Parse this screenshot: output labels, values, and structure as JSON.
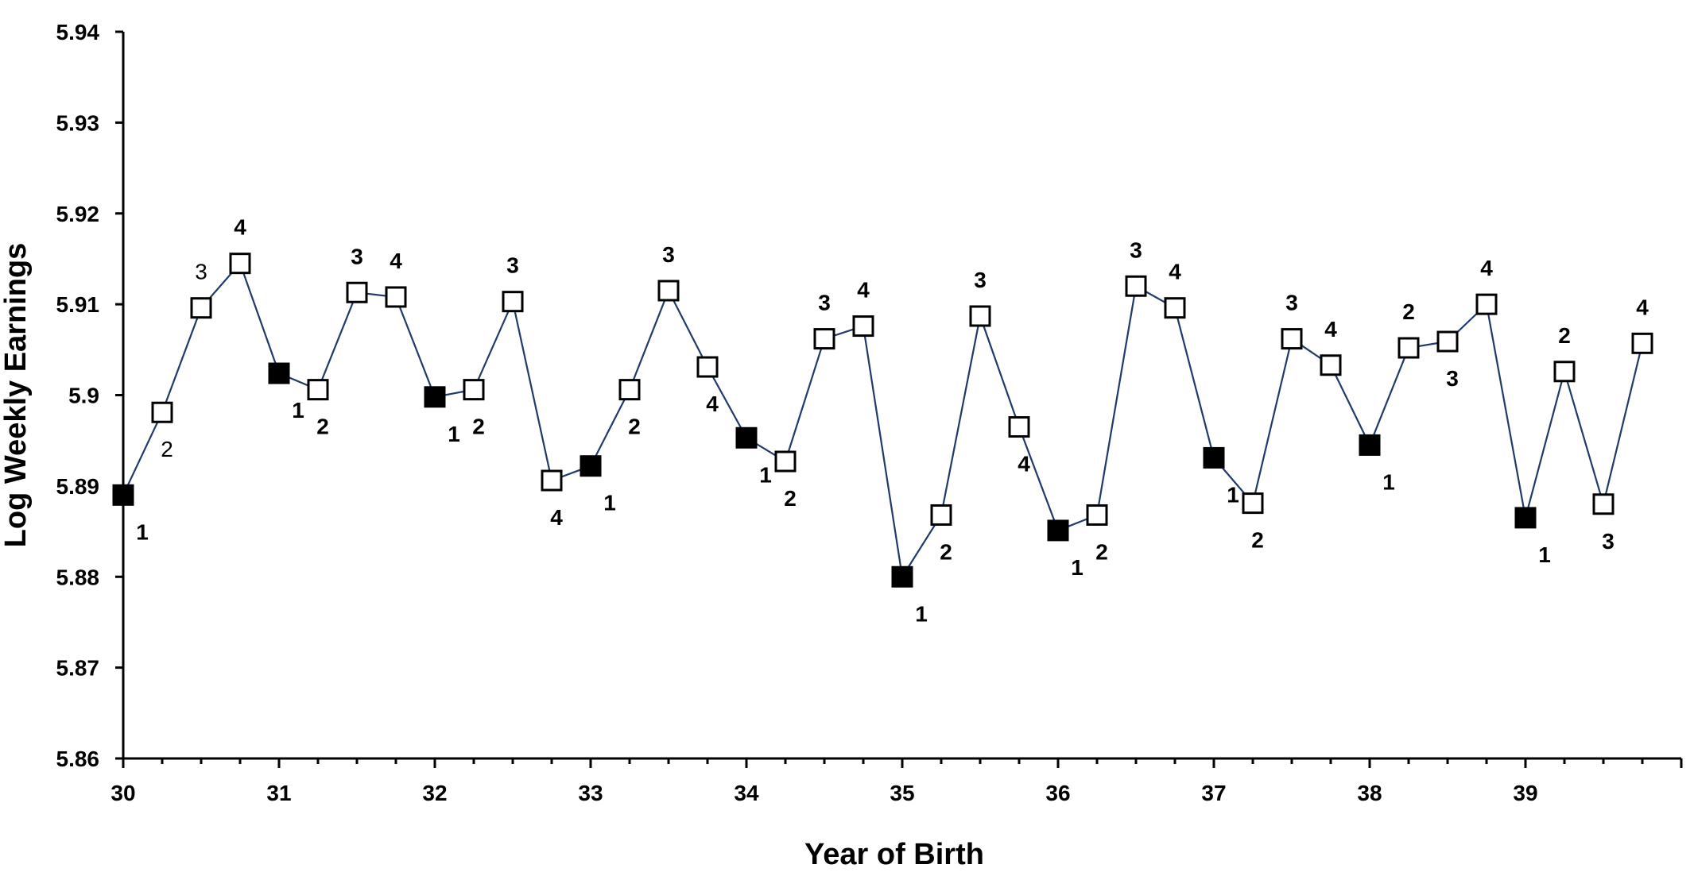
{
  "chart_data": {
    "type": "scatter",
    "title": "",
    "xlabel": "Year of Birth",
    "ylabel": "Log Weekly Earnings",
    "xlim": [
      30,
      39.75
    ],
    "ylim": [
      5.86,
      5.94
    ],
    "x_ticks": [
      "30",
      "31",
      "32",
      "33",
      "34",
      "35",
      "36",
      "37",
      "38",
      "39"
    ],
    "y_ticks": [
      "5.86",
      "5.87",
      "5.88",
      "5.89",
      "5.9",
      "5.91",
      "5.92",
      "5.93",
      "5.94"
    ],
    "grid": false,
    "legend": "none",
    "line_color": "#1f3a6b",
    "marker_shape": "square",
    "markers": {
      "quarter_1": "filled",
      "other_quarters": "hollow"
    },
    "series": [
      {
        "points": [
          {
            "x": 30.0,
            "y": 5.889,
            "q": "1"
          },
          {
            "x": 30.25,
            "y": 5.8981,
            "q": "2"
          },
          {
            "x": 30.5,
            "y": 5.9096,
            "q": "3"
          },
          {
            "x": 30.75,
            "y": 5.9145,
            "q": "4"
          },
          {
            "x": 31.0,
            "y": 5.9024,
            "q": "1"
          },
          {
            "x": 31.25,
            "y": 5.9006,
            "q": "2"
          },
          {
            "x": 31.5,
            "y": 5.9113,
            "q": "3"
          },
          {
            "x": 31.75,
            "y": 5.9108,
            "q": "4"
          },
          {
            "x": 32.0,
            "y": 5.8998,
            "q": "1"
          },
          {
            "x": 32.25,
            "y": 5.9006,
            "q": "2"
          },
          {
            "x": 32.5,
            "y": 5.9103,
            "q": "3"
          },
          {
            "x": 32.75,
            "y": 5.8906,
            "q": "4"
          },
          {
            "x": 33.0,
            "y": 5.8922,
            "q": "1"
          },
          {
            "x": 33.25,
            "y": 5.9006,
            "q": "2"
          },
          {
            "x": 33.5,
            "y": 5.9115,
            "q": "3"
          },
          {
            "x": 33.75,
            "y": 5.9031,
            "q": "4"
          },
          {
            "x": 34.0,
            "y": 5.8953,
            "q": "1"
          },
          {
            "x": 34.25,
            "y": 5.8927,
            "q": "2"
          },
          {
            "x": 34.5,
            "y": 5.9062,
            "q": "3"
          },
          {
            "x": 34.75,
            "y": 5.9076,
            "q": "4"
          },
          {
            "x": 35.0,
            "y": 5.88,
            "q": "1"
          },
          {
            "x": 35.25,
            "y": 5.8868,
            "q": "2"
          },
          {
            "x": 35.5,
            "y": 5.9087,
            "q": "3"
          },
          {
            "x": 35.75,
            "y": 5.8965,
            "q": "4"
          },
          {
            "x": 36.0,
            "y": 5.8851,
            "q": "1"
          },
          {
            "x": 36.25,
            "y": 5.8868,
            "q": "2"
          },
          {
            "x": 36.5,
            "y": 5.912,
            "q": "3"
          },
          {
            "x": 36.75,
            "y": 5.9096,
            "q": "4"
          },
          {
            "x": 37.0,
            "y": 5.8931,
            "q": "1"
          },
          {
            "x": 37.25,
            "y": 5.8881,
            "q": "2"
          },
          {
            "x": 37.5,
            "y": 5.9062,
            "q": "3"
          },
          {
            "x": 37.75,
            "y": 5.9033,
            "q": "4"
          },
          {
            "x": 38.0,
            "y": 5.8945,
            "q": "1"
          },
          {
            "x": 38.25,
            "y": 5.9052,
            "q": "2"
          },
          {
            "x": 38.5,
            "y": 5.9059,
            "q": "3"
          },
          {
            "x": 38.75,
            "y": 5.91,
            "q": "4"
          },
          {
            "x": 39.0,
            "y": 5.8865,
            "q": "1"
          },
          {
            "x": 39.25,
            "y": 5.9026,
            "q": "2"
          },
          {
            "x": 39.5,
            "y": 5.888,
            "q": "3"
          },
          {
            "x": 39.75,
            "y": 5.9057,
            "q": "4"
          }
        ]
      }
    ]
  }
}
